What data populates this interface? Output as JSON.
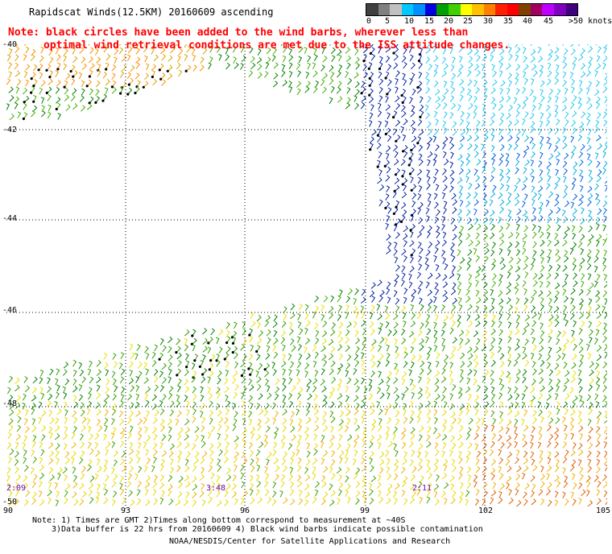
{
  "header": {
    "title": "Rapidscat Winds(12.5KM) 20160609 ascending",
    "note_line1": "Note: black circles have been added to the wind barbs, wherever less than",
    "note_line2": "optimal wind retrieval conditions are met due to the ISS attitude changes."
  },
  "legend": {
    "colors": [
      "#404040",
      "#808080",
      "#c0c0c0",
      "#00c8ff",
      "#0090ff",
      "#0000e0",
      "#00a000",
      "#40d000",
      "#ffff00",
      "#ffc000",
      "#ff8000",
      "#ff2000",
      "#ff0000",
      "#804000",
      "#a00060",
      "#c000ff",
      "#8000c0",
      "#400080"
    ],
    "labels": [
      "0",
      "5",
      "10",
      "15",
      "20",
      "25",
      "30",
      "35",
      "40",
      "45",
      ">50 knots"
    ]
  },
  "axes": {
    "lat_labels": [
      "-40",
      "-42",
      "-44",
      "-46",
      "-48",
      "-50"
    ],
    "lon_labels": [
      "90",
      "93",
      "96",
      "99",
      "102",
      "105"
    ]
  },
  "time_labels": [
    "2:09",
    "3:48",
    "2:11"
  ],
  "footer": {
    "note1": "Note: 1) Times are GMT 2)Times along bottom correspond to measurement at ~40S",
    "note2": "3)Data buffer is 22 hrs from 20160609 4) Black wind barbs indicate possible contamination",
    "credit": "NOAA/NESDIS/Center for Satellite Applications and Research"
  }
}
